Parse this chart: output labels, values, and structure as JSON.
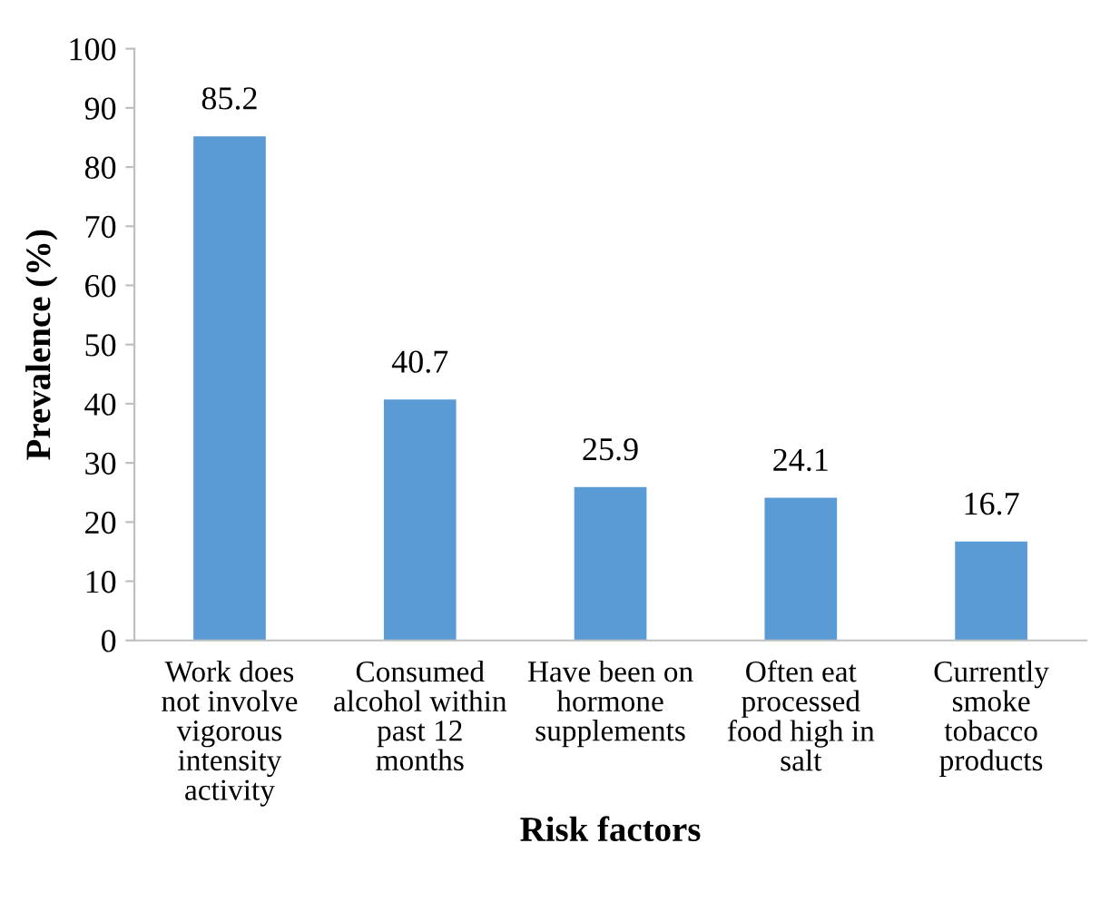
{
  "chart_data": {
    "type": "bar",
    "xlabel": "Risk factors",
    "ylabel": "Prevalence (%)",
    "categories": [
      "Work does\nnot involve\nvigorous\nintensity\nactivity",
      "Consumed\nalcohol within\npast 12\nmonths",
      "Have been on\nhormone\nsupplements",
      "Often eat\nprocessed\nfood high in\nsalt",
      "Currently\nsmoke\ntobacco\nproducts"
    ],
    "values": [
      85.2,
      40.7,
      25.9,
      24.1,
      16.7
    ],
    "color": "#5b9bd5",
    "ylim": [
      0,
      100
    ],
    "yticks": [
      0,
      10,
      20,
      30,
      40,
      50,
      60,
      70,
      80,
      90,
      100
    ],
    "grid": false,
    "legend": false,
    "data_labels": true
  }
}
